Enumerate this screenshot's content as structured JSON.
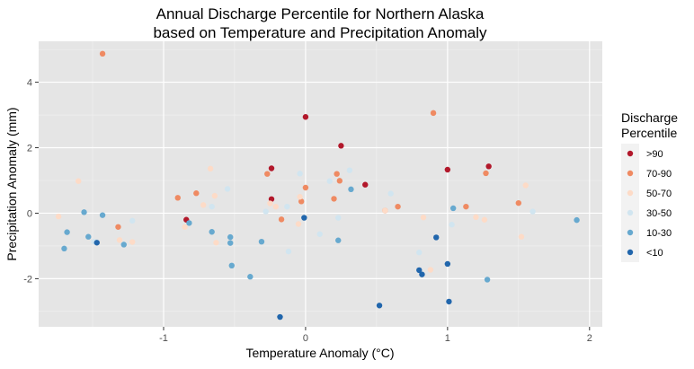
{
  "chart_data": {
    "type": "scatter",
    "title_line1": "Annual Discharge Percentile for Northern Alaska",
    "title_line2": "based on Temperature and Precipitation Anomaly",
    "xlabel": "Temperature Anomaly (°C)",
    "ylabel": "Precipitation Anomaly (mm)",
    "xlim": [
      -1.88,
      2.09
    ],
    "ylim": [
      -3.47,
      5.25
    ],
    "x_ticks": [
      -1,
      0,
      1,
      2
    ],
    "x_tick_labels": [
      "-1",
      "0",
      "1",
      "2"
    ],
    "y_ticks": [
      -2,
      0,
      2,
      4
    ],
    "y_tick_labels": [
      "-2",
      "0",
      "2",
      "4"
    ],
    "grid": true,
    "legend_placement": "right",
    "legend": {
      "title_line1": "Discharge",
      "title_line2": "Percentile",
      "entries": [
        {
          "label": ">90",
          "color": "#b2182b"
        },
        {
          "label": "70-90",
          "color": "#ef8a62"
        },
        {
          "label": "50-70",
          "color": "#fddbc7"
        },
        {
          "label": "30-50",
          "color": "#d1e5f0"
        },
        {
          "label": "10-30",
          "color": "#67a9cf"
        },
        {
          "label": "<10",
          "color": "#2166ac"
        }
      ]
    },
    "series": [
      {
        "name": ">90",
        "points": [
          [
            -0.84,
            -0.2
          ],
          [
            -0.24,
            1.37
          ],
          [
            -0.24,
            0.43
          ],
          [
            0.0,
            2.94
          ],
          [
            0.25,
            2.06
          ],
          [
            0.42,
            0.87
          ],
          [
            1.0,
            1.33
          ],
          [
            1.29,
            1.43
          ]
        ]
      },
      {
        "name": "70-90",
        "points": [
          [
            -1.43,
            4.87
          ],
          [
            -1.32,
            -0.42
          ],
          [
            -0.9,
            0.47
          ],
          [
            -0.77,
            0.61
          ],
          [
            -0.27,
            1.2
          ],
          [
            -0.17,
            -0.19
          ],
          [
            -0.03,
            0.36
          ],
          [
            0.0,
            0.78
          ],
          [
            0.2,
            0.44
          ],
          [
            0.22,
            1.2
          ],
          [
            0.24,
            0.99
          ],
          [
            0.56,
            0.08
          ],
          [
            0.65,
            0.2
          ],
          [
            0.9,
            3.06
          ],
          [
            1.13,
            0.2
          ],
          [
            1.27,
            1.22
          ],
          [
            1.5,
            0.31
          ]
        ]
      },
      {
        "name": "50-70",
        "points": [
          [
            -1.74,
            -0.1
          ],
          [
            -1.6,
            0.98
          ],
          [
            -1.31,
            -0.82
          ],
          [
            -1.22,
            -0.88
          ],
          [
            -0.85,
            -0.42
          ],
          [
            -0.72,
            0.25
          ],
          [
            -0.67,
            1.36
          ],
          [
            -0.64,
            0.53
          ],
          [
            -0.63,
            -0.9
          ],
          [
            -0.25,
            0.3
          ],
          [
            -0.21,
            0.2
          ],
          [
            -0.04,
            0.5
          ],
          [
            -0.05,
            -0.33
          ],
          [
            0.56,
            0.08
          ],
          [
            0.83,
            -0.13
          ],
          [
            0.88,
            -1.73
          ],
          [
            1.2,
            -0.12
          ],
          [
            1.26,
            -0.2
          ],
          [
            1.52,
            -0.72
          ],
          [
            1.55,
            0.85
          ]
        ]
      },
      {
        "name": "30-50",
        "points": [
          [
            -1.49,
            -0.87
          ],
          [
            -1.22,
            -0.23
          ],
          [
            -0.66,
            0.2
          ],
          [
            -0.55,
            0.74
          ],
          [
            -0.28,
            0.05
          ],
          [
            -0.13,
            0.2
          ],
          [
            -0.12,
            -1.17
          ],
          [
            -0.04,
            1.21
          ],
          [
            0.1,
            -0.64
          ],
          [
            0.17,
            0.98
          ],
          [
            0.23,
            -0.14
          ],
          [
            0.31,
            1.31
          ],
          [
            0.6,
            0.6
          ],
          [
            0.8,
            -1.2
          ],
          [
            1.03,
            -0.35
          ],
          [
            1.6,
            0.05
          ]
        ]
      },
      {
        "name": "10-30",
        "points": [
          [
            -1.7,
            -1.08
          ],
          [
            -1.68,
            -0.58
          ],
          [
            -1.56,
            0.03
          ],
          [
            -1.53,
            -0.72
          ],
          [
            -1.43,
            -0.06
          ],
          [
            -1.28,
            -0.96
          ],
          [
            -0.82,
            -0.3
          ],
          [
            -0.66,
            -0.57
          ],
          [
            -0.53,
            -0.73
          ],
          [
            -0.53,
            -0.91
          ],
          [
            -0.52,
            -1.6
          ],
          [
            -0.39,
            -1.94
          ],
          [
            -0.31,
            -0.87
          ],
          [
            0.23,
            -0.83
          ],
          [
            0.32,
            0.73
          ],
          [
            1.04,
            0.15
          ],
          [
            1.28,
            -2.03
          ],
          [
            1.91,
            -0.21
          ]
        ]
      },
      {
        "name": "<10",
        "points": [
          [
            -1.47,
            -0.9
          ],
          [
            -0.18,
            -3.17
          ],
          [
            -0.01,
            -0.14
          ],
          [
            0.52,
            -2.82
          ],
          [
            0.8,
            -1.74
          ],
          [
            0.82,
            -1.87
          ],
          [
            0.92,
            -0.74
          ],
          [
            1.0,
            -1.55
          ],
          [
            1.01,
            -2.7
          ]
        ]
      }
    ]
  }
}
